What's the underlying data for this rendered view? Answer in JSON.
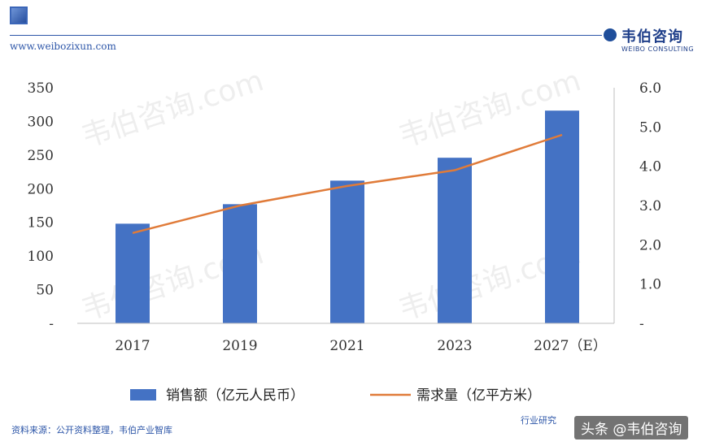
{
  "header": {
    "site_url": "www.weibozixun.com",
    "brand_name": "韦伯咨询",
    "brand_sub": "WEIBO CONSULTING"
  },
  "footer": {
    "source": "资料来源：公开资料整理，韦伯产业智库",
    "right_text": "行业研究",
    "credit": "头条 @韦伯咨询"
  },
  "watermark_text": "韦伯咨询.com",
  "colors": {
    "bar": "#4472c4",
    "line": "#e07b39",
    "brand": "#2d56a8"
  },
  "chart_data": {
    "type": "bar",
    "categories": [
      "2017",
      "2019",
      "2021",
      "2023",
      "2027（E）"
    ],
    "series": [
      {
        "name": "销售额（亿元人民币）",
        "type": "bar",
        "axis": "left",
        "values": [
          148,
          177,
          212,
          246,
          316
        ]
      },
      {
        "name": "需求量（亿平方米）",
        "type": "line",
        "axis": "right",
        "values": [
          2.3,
          3.0,
          3.5,
          3.9,
          4.8
        ]
      }
    ],
    "y_left": {
      "ticks": [
        "-",
        "50",
        "100",
        "150",
        "200",
        "250",
        "300",
        "350"
      ],
      "ylim": [
        0,
        350
      ]
    },
    "y_right": {
      "ticks": [
        "-",
        "1.0",
        "2.0",
        "3.0",
        "4.0",
        "5.0",
        "6.0"
      ],
      "ylim": [
        0,
        6
      ]
    },
    "grid": false,
    "legend_position": "bottom"
  }
}
